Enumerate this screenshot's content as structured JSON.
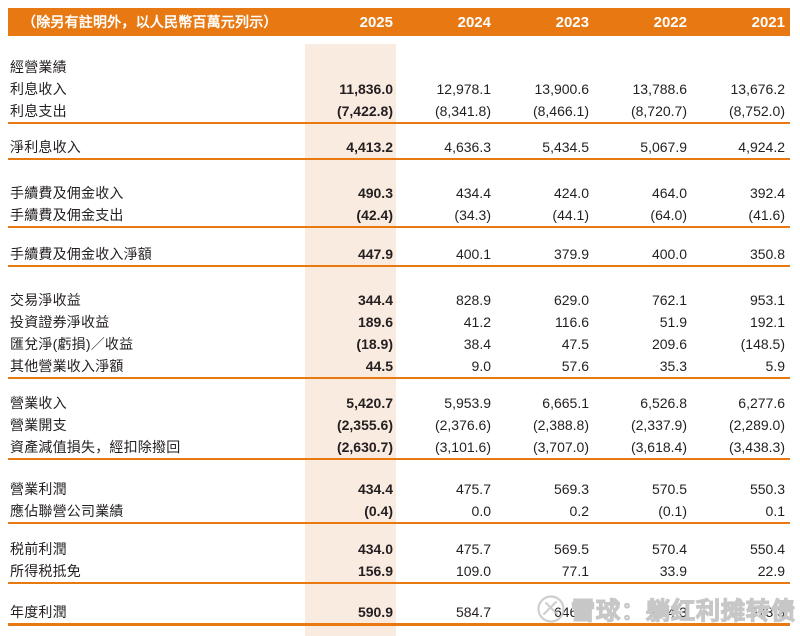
{
  "header": {
    "note_label": "（除另有註明外，以人民幣百萬元列示）",
    "years": [
      "2025",
      "2024",
      "2023",
      "2022",
      "2021"
    ]
  },
  "table": {
    "groups": [
      {
        "section": "經營業績",
        "rows": [
          {
            "label": "利息收入",
            "values": [
              "11,836.0",
              "12,978.1",
              "13,900.6",
              "13,788.6",
              "13,676.2"
            ]
          },
          {
            "label": "利息支出",
            "values": [
              "(7,422.8)",
              "(8,341.8)",
              "(8,466.1)",
              "(8,720.7)",
              "(8,752.0)"
            ]
          }
        ]
      },
      {
        "rows": [
          {
            "label": "淨利息收入",
            "values": [
              "4,413.2",
              "4,636.3",
              "5,434.5",
              "5,067.9",
              "4,924.2"
            ]
          }
        ]
      },
      {
        "rows": [
          {
            "label": "手續費及佣金收入",
            "values": [
              "490.3",
              "434.4",
              "424.0",
              "464.0",
              "392.4"
            ]
          },
          {
            "label": "手續費及佣金支出",
            "values": [
              "(42.4)",
              "(34.3)",
              "(44.1)",
              "(64.0)",
              "(41.6)"
            ]
          }
        ]
      },
      {
        "rows": [
          {
            "label": "手續費及佣金收入淨額",
            "values": [
              "447.9",
              "400.1",
              "379.9",
              "400.0",
              "350.8"
            ]
          }
        ]
      },
      {
        "rows": [
          {
            "label": "交易淨收益",
            "values": [
              "344.4",
              "828.9",
              "629.0",
              "762.1",
              "953.1"
            ]
          },
          {
            "label": "投資證券淨收益",
            "values": [
              "189.6",
              "41.2",
              "116.6",
              "51.9",
              "192.1"
            ]
          },
          {
            "label": "匯兌淨(虧損)／收益",
            "values": [
              "(18.9)",
              "38.4",
              "47.5",
              "209.6",
              "(148.5)"
            ]
          },
          {
            "label": "其他營業收入淨額",
            "values": [
              "44.5",
              "9.0",
              "57.6",
              "35.3",
              "5.9"
            ]
          }
        ]
      },
      {
        "rows": [
          {
            "label": "營業收入",
            "values": [
              "5,420.7",
              "5,953.9",
              "6,665.1",
              "6,526.8",
              "6,277.6"
            ]
          },
          {
            "label": "營業開支",
            "values": [
              "(2,355.6)",
              "(2,376.6)",
              "(2,388.8)",
              "(2,337.9)",
              "(2,289.0)"
            ]
          },
          {
            "label": "資產減值損失，經扣除撥回",
            "values": [
              "(2,630.7)",
              "(3,101.6)",
              "(3,707.0)",
              "(3,618.4)",
              "(3,438.3)"
            ]
          }
        ]
      },
      {
        "rows": [
          {
            "label": "營業利潤",
            "values": [
              "434.4",
              "475.7",
              "569.3",
              "570.5",
              "550.3"
            ]
          },
          {
            "label": "應佔聯營公司業績",
            "values": [
              "(0.4)",
              "0.0",
              "0.2",
              "(0.1)",
              "0.1"
            ]
          }
        ]
      },
      {
        "rows": [
          {
            "label": "税前利潤",
            "values": [
              "434.0",
              "475.7",
              "569.5",
              "570.4",
              "550.4"
            ]
          },
          {
            "label": "所得税抵免",
            "values": [
              "156.9",
              "109.0",
              "77.1",
              "33.9",
              "22.9"
            ]
          }
        ]
      },
      {
        "rows": [
          {
            "label": "年度利潤",
            "values": [
              "590.9",
              "584.7",
              "646.6",
              "604.3",
              "573.3"
            ]
          }
        ]
      }
    ]
  },
  "watermark": {
    "text": "雪球：躺红利摊转债"
  },
  "colors": {
    "accent_orange": "#E87812",
    "highlight_column": "#FAEBE1",
    "text": "#231F20",
    "watermark_gray": "#C7C7C7"
  }
}
